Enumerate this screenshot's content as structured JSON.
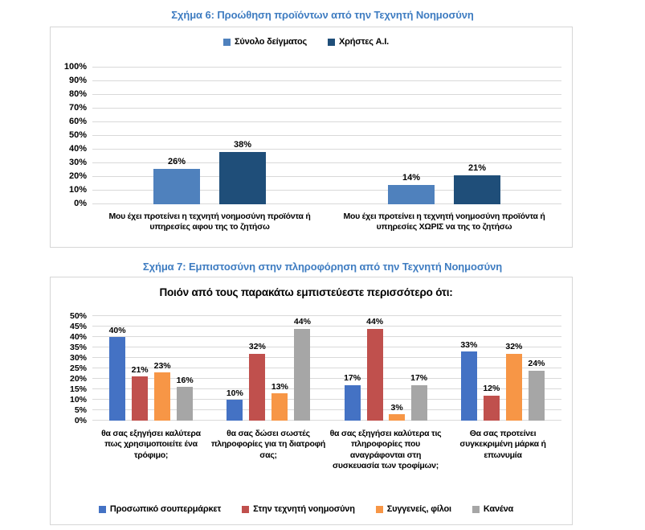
{
  "chart_data": [
    {
      "type": "bar",
      "title": "Σχήμα 6: Προώθηση προϊόντων από την Τεχνητή Νοημοσύνη",
      "categories": [
        "Μου έχει προτείνει η τεχνητή νοημοσύνη προϊόντα ή υπηρεσίες αφου της το ζητήσω",
        "Μου έχει προτείνει η τεχνητή νοημοσύνη προϊόντα ή υπηρεσίες ΧΩΡΙΣ να της το ζητήσω"
      ],
      "series": [
        {
          "name": "Σύνολο δείγματος",
          "color": "#4F81BD",
          "values": [
            26,
            14
          ]
        },
        {
          "name": "Χρήστες A.I.",
          "color": "#1F4E79",
          "values": [
            38,
            21
          ]
        }
      ],
      "ylim": [
        0,
        100
      ],
      "ytick_step": 10,
      "ytick_labels": [
        "0%",
        "10%",
        "20%",
        "30%",
        "40%",
        "50%",
        "60%",
        "70%",
        "80%",
        "90%",
        "100%"
      ],
      "value_label_suffix": "%",
      "grid": true,
      "legend_position": "top"
    },
    {
      "type": "bar",
      "title": "Σχήμα 7: Εμπιστοσύνη στην πληροφόρηση από την Τεχνητή Νοημοσύνη",
      "subtitle": "Ποιόν από τους παρακάτω εμπιστεύεστε περισσότερο ότι:",
      "categories": [
        "θα σας εξηγήσει καλύτερα πως χρησιμοποιείτε ένα τρόφιμο;",
        "θα σας δώσει σωστές πληροφορίες για τη διατροφή σας;",
        "θα σας εξηγήσει καλύτερα τις πληροφορίες που αναγράφονται στη συσκευασία των τροφίμων;",
        "Θα σας προτείνει συγκεκριμένη μάρκα ή επωνυμία"
      ],
      "series": [
        {
          "name": "Προσωπικό σουπερμάρκετ",
          "color": "#4472C4",
          "values": [
            40,
            10,
            17,
            33
          ]
        },
        {
          "name": "Στην τεχνητή νοημοσύνη",
          "color": "#C0504D",
          "values": [
            21,
            32,
            44,
            12
          ]
        },
        {
          "name": "Συγγενείς, φίλοι",
          "color": "#F79646",
          "values": [
            23,
            13,
            3,
            32
          ]
        },
        {
          "name": "Κανένα",
          "color": "#A6A6A6",
          "values": [
            16,
            44,
            17,
            24
          ]
        }
      ],
      "ylim": [
        0,
        50
      ],
      "ytick_step": 5,
      "ytick_labels": [
        "0%",
        "5%",
        "10%",
        "15%",
        "20%",
        "25%",
        "30%",
        "35%",
        "40%",
        "45%",
        "50%"
      ],
      "value_label_suffix": "%",
      "grid": true,
      "legend_position": "bottom"
    }
  ],
  "colors": {
    "title_blue": "#3E7CC1",
    "gridline": "#D9D9D9",
    "panel_border": "#D6D6D6"
  }
}
